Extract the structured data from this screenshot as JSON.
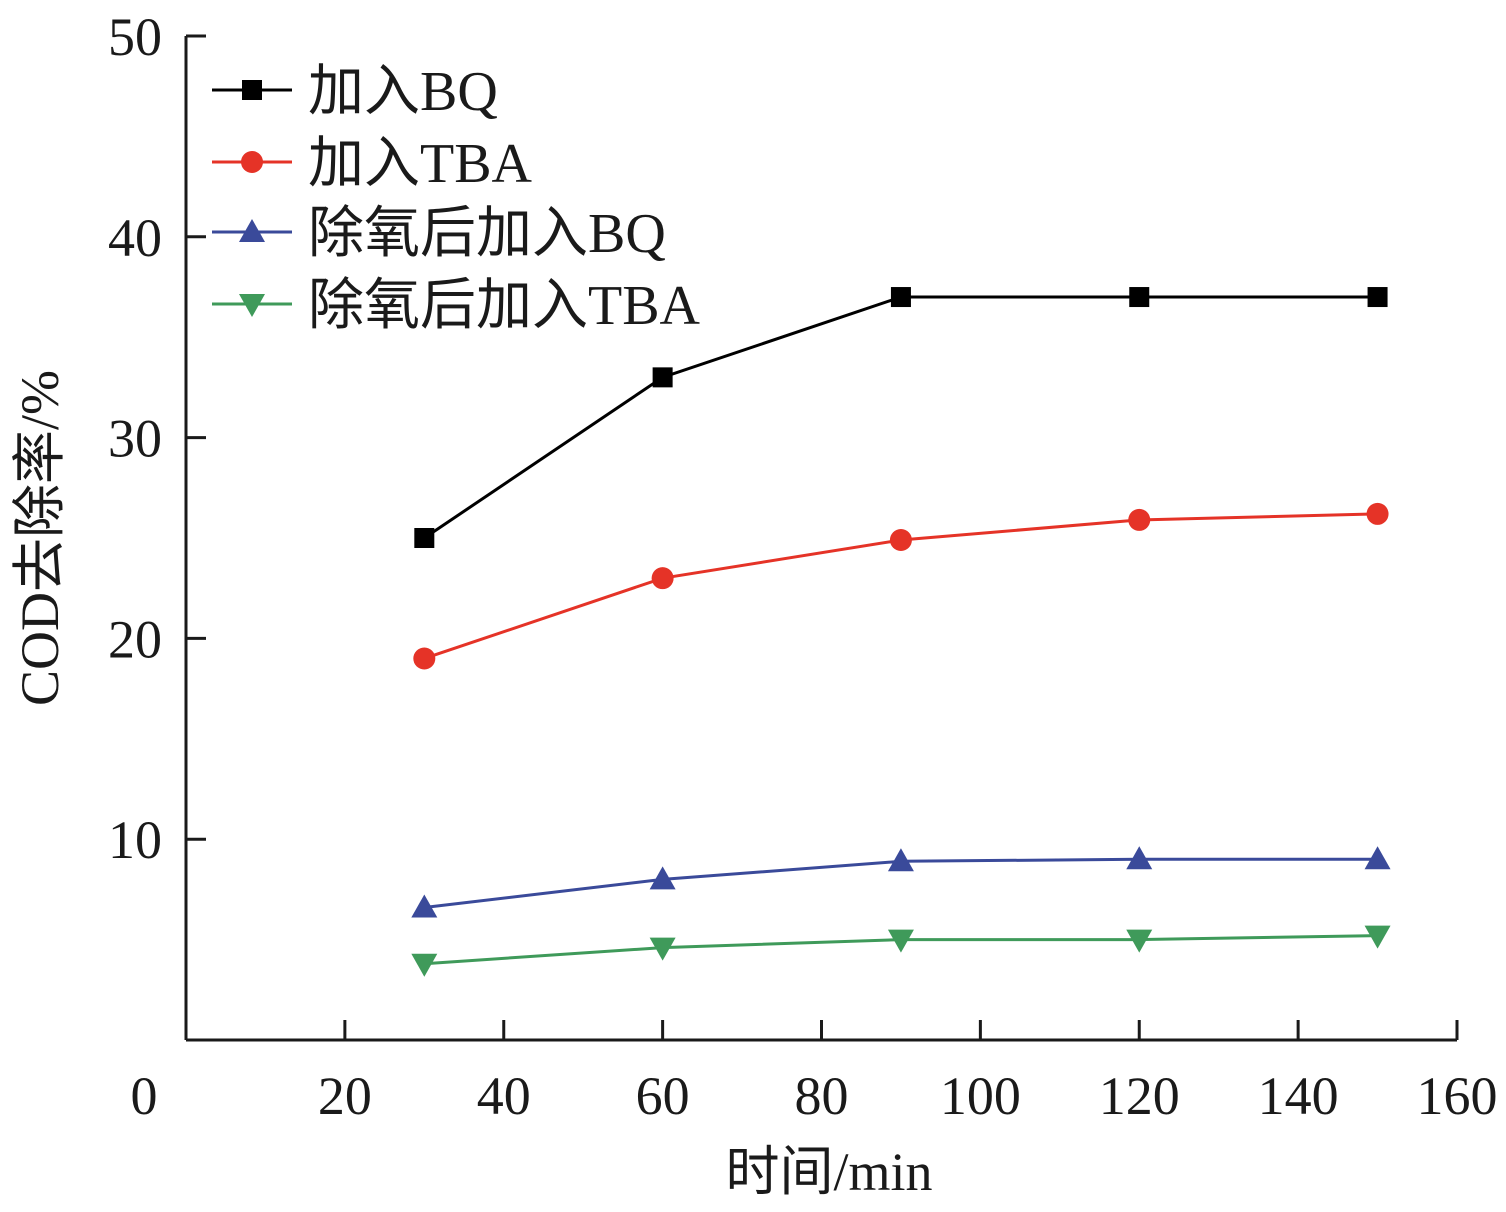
{
  "chart_data": {
    "type": "line",
    "xlabel": "时间/min",
    "ylabel": "COD去除率/%",
    "xlim": [
      0,
      160
    ],
    "ylim": [
      0,
      50
    ],
    "x_ticks": [
      0,
      20,
      40,
      60,
      80,
      100,
      120,
      140,
      160
    ],
    "y_ticks": [
      10,
      20,
      30,
      40,
      50
    ],
    "grid": false,
    "legend_position": "top-left",
    "x": [
      30,
      60,
      90,
      120,
      150
    ],
    "series": [
      {
        "name": "加入BQ",
        "values": [
          25.0,
          33.0,
          37.0,
          37.0,
          37.0
        ],
        "color": "#000000",
        "marker": "square"
      },
      {
        "name": "加入TBA",
        "values": [
          19.0,
          23.0,
          24.9,
          25.9,
          26.2
        ],
        "color": "#e53327",
        "marker": "circle"
      },
      {
        "name": "除氧后加入BQ",
        "values": [
          6.6,
          8.0,
          8.9,
          9.0,
          9.0
        ],
        "color": "#3a4a9a",
        "marker": "triangle-up"
      },
      {
        "name": "除氧后加入TBA",
        "values": [
          3.8,
          4.6,
          5.0,
          5.0,
          5.2
        ],
        "color": "#3f9a5a",
        "marker": "triangle-down"
      }
    ]
  }
}
